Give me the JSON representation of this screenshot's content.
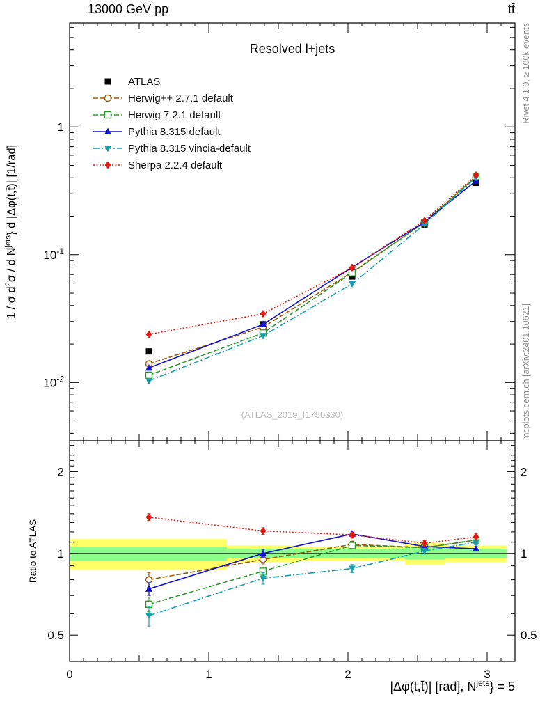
{
  "chart_data": {
    "type": "line",
    "title": "Resolved l+jets",
    "top_left_label": "13000 GeV pp",
    "top_right_label": "tt̄",
    "watermark": "(ATLAS_2019_I1750330)",
    "right_label_top": "Rivet 4.1.0, ≥ 100k events",
    "right_label_bottom": "mcplots.cern.ch [arXiv:2401.10621]",
    "ylabel_main": "1 / σ d²σ / d N^jets } d |Δφ(t,t̄)| [1/rad]",
    "ylabel_main_parts": {
      "a": "1 / σ d",
      "b": "2",
      "c": "σ / d N",
      "d": "jets",
      "e": "} d |Δφ(t,t̄)| [1/rad]"
    },
    "ylabel_ratio": "Ratio to ATLAS",
    "xlabel": "|Δφ(t,t̄)| [rad], N^jets } = 5",
    "xlabel_parts": {
      "a": "|Δφ(t,t̄)| [rad], N",
      "b": "jets",
      "c": "} = 5"
    },
    "xlim": [
      0,
      3.2
    ],
    "ylim_main": [
      0.0035,
      6.5
    ],
    "ylim_ratio": [
      0.4,
      2.6
    ],
    "x_values": [
      0.57,
      1.39,
      2.03,
      2.55,
      2.92
    ],
    "x_ticks": {
      "values": [
        0,
        1,
        2,
        3
      ],
      "labels": [
        "0",
        "1",
        "2",
        "3"
      ]
    },
    "y_ticks_main": {
      "values": [
        1,
        0.1,
        0.01
      ],
      "labels": [
        "1",
        "10^-1",
        "10^-2"
      ]
    },
    "y_ticks_ratio": {
      "values": [
        2,
        1,
        0.5
      ],
      "labels": [
        "2",
        "1",
        "0.5"
      ]
    },
    "ratio_reference": 1,
    "series": [
      {
        "id": "atlas",
        "name": "ATLAS",
        "color": "#000000",
        "marker": "square-filled",
        "line_style": "none",
        "values": [
          0.0175,
          0.0285,
          0.0675,
          0.17,
          0.365
        ],
        "errors": [
          0.0005,
          0.0007,
          0.0015,
          0.004,
          0.008
        ],
        "ratio": null,
        "ratio_errors": null
      },
      {
        "id": "herwigpp",
        "name": "Herwig++ 2.7.1 default",
        "color": "#a05a00",
        "marker": "circle-open",
        "line_style": "dashed",
        "values": [
          0.014,
          0.0271,
          0.0729,
          0.179,
          0.409
        ],
        "errors": [
          0.0004,
          0.0006,
          0.0012,
          0.003,
          0.006
        ],
        "ratio": [
          0.8,
          0.95,
          1.08,
          1.05,
          1.12
        ],
        "ratio_errors": [
          0.05,
          0.035,
          0.03,
          0.025,
          0.025
        ]
      },
      {
        "id": "herwig7",
        "name": "Herwig 7.2.1 default",
        "color": "#2e9b2e",
        "marker": "square-open",
        "line_style": "dashed",
        "values": [
          0.0114,
          0.0244,
          0.0722,
          0.179,
          0.409
        ],
        "errors": [
          0.0004,
          0.0006,
          0.0012,
          0.003,
          0.006
        ],
        "ratio": [
          0.65,
          0.86,
          1.07,
          1.05,
          1.12
        ],
        "ratio_errors": [
          0.04,
          0.03,
          0.025,
          0.02,
          0.02
        ]
      },
      {
        "id": "pythia",
        "name": "Pythia 8.315 default",
        "color": "#1212cc",
        "marker": "triangle-up-filled",
        "line_style": "solid",
        "values": [
          0.013,
          0.0285,
          0.0797,
          0.18,
          0.378
        ],
        "errors": [
          0.0004,
          0.0007,
          0.0013,
          0.003,
          0.006
        ],
        "ratio": [
          0.74,
          1.0,
          1.18,
          1.06,
          1.04
        ],
        "ratio_errors": [
          0.04,
          0.035,
          0.03,
          0.025,
          0.02
        ]
      },
      {
        "id": "pythia-vincia",
        "name": "Pythia 8.315 vincia-default",
        "color": "#1a9fae",
        "marker": "triangle-down-filled",
        "line_style": "dashdot",
        "values": [
          0.0103,
          0.0232,
          0.0591,
          0.173,
          0.402
        ],
        "errors": [
          0.0005,
          0.0007,
          0.0012,
          0.003,
          0.007
        ],
        "ratio": [
          0.59,
          0.81,
          0.88,
          1.02,
          1.1
        ],
        "ratio_errors": [
          0.05,
          0.04,
          0.03,
          0.025,
          0.025
        ]
      },
      {
        "id": "sherpa",
        "name": "Sherpa 2.2.4 default",
        "color": "#e61910",
        "marker": "diamond-filled",
        "line_style": "dotted",
        "values": [
          0.0238,
          0.0345,
          0.079,
          0.185,
          0.42
        ],
        "errors": [
          0.0006,
          0.0008,
          0.0014,
          0.003,
          0.007
        ],
        "ratio": [
          1.36,
          1.21,
          1.17,
          1.09,
          1.15
        ],
        "ratio_errors": [
          0.04,
          0.035,
          0.03,
          0.025,
          0.03
        ]
      }
    ],
    "bands": {
      "edges": [
        0,
        1.13,
        1.64,
        2.41,
        2.7,
        3.1416
      ],
      "yellow": [
        [
          0.87,
          1.13
        ],
        [
          0.93,
          1.07
        ],
        [
          0.94,
          1.06
        ],
        [
          0.91,
          1.09
        ],
        [
          0.93,
          1.07
        ]
      ],
      "green": [
        [
          0.94,
          1.06
        ],
        [
          0.96,
          1.04
        ],
        [
          0.96,
          1.04
        ],
        [
          0.95,
          1.05
        ],
        [
          0.96,
          1.04
        ]
      ],
      "yellow_color": "#ffff66",
      "green_color": "#8aff8a"
    }
  }
}
